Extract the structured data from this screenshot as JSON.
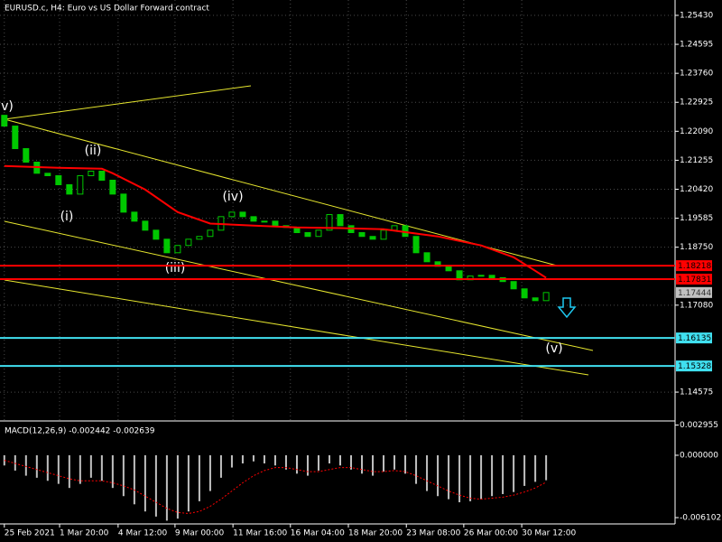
{
  "chart_data": [
    {
      "type": "candlestick",
      "title": "EURUSD.c, H4:  Euro vs US Dollar Forward contract",
      "color": "#00c800",
      "grid": true,
      "xlim": [
        -0.4,
        61.9
      ],
      "ylim": [
        1.1377,
        1.2582
      ],
      "yticks": [
        {
          "value": 1.2543,
          "label": "1.25430"
        },
        1.24595,
        {
          "value": 1.2376,
          "label": "1.23760"
        },
        1.22925,
        {
          "value": 1.2209,
          "label": "1.22090"
        },
        1.21255,
        {
          "value": 1.2042,
          "label": "1.20420"
        },
        1.19585,
        {
          "value": 1.1875,
          "label": "1.18750"
        },
        {
          "value": 1.1708,
          "label": "1.17080"
        },
        1.14575
      ],
      "xticks": [
        {
          "value": 0,
          "label": "25 Feb 2021"
        },
        {
          "value": 5.1,
          "label": "1 Mar 20:00"
        },
        {
          "value": 10.5,
          "label": "4 Mar 12:00"
        },
        {
          "value": 15.75,
          "label": "9 Mar 00:00"
        },
        {
          "value": 21.1,
          "label": "11 Mar 16:00"
        },
        {
          "value": 26.4,
          "label": "16 Mar 04:00"
        },
        {
          "value": 31.75,
          "label": "18 Mar 20:00"
        },
        {
          "value": 37.1,
          "label": "23 Mar 08:00"
        },
        {
          "value": 42.4,
          "label": "26 Mar 00:00"
        },
        {
          "value": 47.75,
          "label": "30 Mar 12:00"
        }
      ],
      "opens": [
        1.2255,
        1.2224,
        1.2159,
        1.212,
        1.2088,
        1.2081,
        1.2055,
        1.2028,
        1.2081,
        1.2094,
        1.2068,
        1.2028,
        1.1976,
        1.195,
        1.1924,
        1.1898,
        1.1859,
        1.188,
        1.1898,
        1.1906,
        1.1924,
        1.1963,
        1.1976,
        1.1963,
        1.195,
        1.195,
        1.1937,
        1.1932,
        1.1917,
        1.1906,
        1.1924,
        1.1969,
        1.1937,
        1.1917,
        1.1906,
        1.1898,
        1.1924,
        1.1937,
        1.1906,
        1.1859,
        1.1833,
        1.182,
        1.1807,
        1.1781,
        1.1792,
        1.1794,
        1.1787,
        1.1776,
        1.1755,
        1.1729,
        1.1721
      ],
      "closes": [
        1.2224,
        1.2159,
        1.212,
        1.2088,
        1.2081,
        1.2055,
        1.2028,
        1.2081,
        1.2094,
        1.2068,
        1.2028,
        1.1976,
        1.195,
        1.1924,
        1.1898,
        1.1859,
        1.188,
        1.1898,
        1.1906,
        1.1924,
        1.1963,
        1.1976,
        1.1963,
        1.195,
        1.195,
        1.1937,
        1.1932,
        1.1917,
        1.1906,
        1.1924,
        1.1969,
        1.1937,
        1.1917,
        1.1906,
        1.1898,
        1.1924,
        1.1937,
        1.1906,
        1.1859,
        1.1833,
        1.182,
        1.1807,
        1.1781,
        1.1792,
        1.1794,
        1.1787,
        1.1776,
        1.1755,
        1.1729,
        1.1721,
        1.17444
      ],
      "series": [
        {
          "color": "#ff0000",
          "x": [
            0,
            5,
            9,
            10,
            13,
            16,
            19,
            23,
            27,
            31,
            35,
            40,
            44,
            47,
            49,
            50
          ],
          "values": [
            1.2109,
            1.2104,
            1.2101,
            1.2088,
            1.2041,
            1.1976,
            1.1943,
            1.1937,
            1.1932,
            1.193,
            1.1927,
            1.1906,
            1.188,
            1.1846,
            1.1807,
            1.1787
          ]
        }
      ],
      "price_lines": [
        {
          "value": 1.18218,
          "label": "1.18218",
          "color": "#ff0000",
          "box": "#ff0000"
        },
        {
          "value": 1.17831,
          "label": "1.17831",
          "color": "#ff0000",
          "box": "#ff0000"
        },
        {
          "value": 1.17444,
          "label": "1.17444",
          "color": "#606060",
          "box": "#c0c0c0",
          "line": false
        },
        {
          "value": 1.16135,
          "label": "1.16135",
          "color": "#40e0f0",
          "box": "#40e0f0"
        },
        {
          "value": 1.15328,
          "label": "1.15328",
          "color": "#40e0f0",
          "box": "#40e0f0"
        }
      ],
      "annotations": [
        "v)",
        "(ii)",
        "(i)",
        "(iv)",
        "(iii)",
        "(v)"
      ]
    },
    {
      "type": "macd",
      "label": "MACD(12,26,9) -0.002442 -0.002639",
      "color": "#c0c0c0",
      "ylim": [
        -0.00672,
        0.00318
      ],
      "yticks": [
        0.002955,
        {
          "value": 0,
          "label": "0.000000"
        },
        -0.006102
      ],
      "values": [
        -0.001,
        -0.0015,
        -0.002,
        -0.0022,
        -0.0025,
        -0.0028,
        -0.0032,
        -0.0028,
        -0.0022,
        -0.0025,
        -0.0032,
        -0.004,
        -0.0048,
        -0.0055,
        -0.006,
        -0.0064,
        -0.0062,
        -0.0055,
        -0.0045,
        -0.0035,
        -0.0022,
        -0.0012,
        -0.0008,
        -0.0006,
        -0.0008,
        -0.001,
        -0.0014,
        -0.0018,
        -0.002,
        -0.0015,
        -0.0008,
        -0.001,
        -0.0014,
        -0.0018,
        -0.002,
        -0.0016,
        -0.0014,
        -0.0018,
        -0.0028,
        -0.0035,
        -0.004,
        -0.0043,
        -0.0046,
        -0.0045,
        -0.0043,
        -0.004,
        -0.0038,
        -0.0036,
        -0.003,
        -0.0026,
        -0.002442
      ],
      "signal": {
        "color": "#ff0000",
        "values": [
          -0.0005,
          -0.0008,
          -0.0011,
          -0.0014,
          -0.0017,
          -0.002,
          -0.0023,
          -0.0025,
          -0.0025,
          -0.0025,
          -0.0027,
          -0.003,
          -0.0034,
          -0.004,
          -0.0046,
          -0.0052,
          -0.0056,
          -0.0057,
          -0.0055,
          -0.005,
          -0.0043,
          -0.0035,
          -0.0027,
          -0.002,
          -0.0015,
          -0.0012,
          -0.0012,
          -0.0014,
          -0.0016,
          -0.0016,
          -0.0014,
          -0.0012,
          -0.0012,
          -0.0014,
          -0.0016,
          -0.0016,
          -0.0015,
          -0.0016,
          -0.002,
          -0.0025,
          -0.003,
          -0.0035,
          -0.0039,
          -0.0042,
          -0.0043,
          -0.0042,
          -0.0041,
          -0.0039,
          -0.0036,
          -0.0032,
          -0.002639
        ]
      }
    }
  ]
}
